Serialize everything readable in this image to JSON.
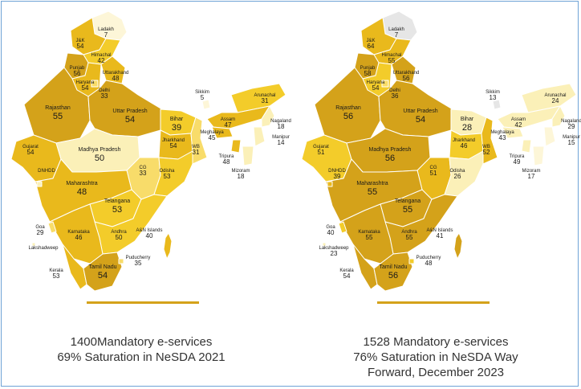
{
  "colors": {
    "high": "#d4a21a",
    "mid": "#e9b91c",
    "mid_light": "#f3cc2a",
    "light": "#f8dc6a",
    "pale": "#fbf0b8",
    "very_pale": "#fdf6d8",
    "grey": "#e6e6e6",
    "border": "#ffffff",
    "rule": "#d4a21a",
    "frame_border": "#6fa3d6"
  },
  "maps": [
    {
      "id": "2021",
      "caption_lines": [
        "1400Mandatory e-services",
        "69% Saturation in NeSDA 2021"
      ],
      "states": {
        "ladakh": {
          "name": "Ladakh",
          "value": "7"
        },
        "jk": {
          "name": "J&K",
          "value": "54"
        },
        "himachal": {
          "name": "Himachal",
          "value": "42"
        },
        "punjab": {
          "name": "Punjab",
          "value": "56"
        },
        "uttarakhand": {
          "name": "Uttarakhand",
          "value": "48"
        },
        "haryana": {
          "name": "Haryana",
          "value": "54"
        },
        "delhi": {
          "name": "Delhi",
          "value": "33"
        },
        "rajasthan": {
          "name": "Rajasthan",
          "value": "55"
        },
        "up": {
          "name": "Uttar Pradesh",
          "value": "54"
        },
        "bihar": {
          "name": "Bihar",
          "value": "39"
        },
        "gujarat": {
          "name": "Gujarat",
          "value": "54"
        },
        "mp": {
          "name": "Madhya Pradesh",
          "value": "50"
        },
        "jharkhand": {
          "name": "Jharkhand",
          "value": "54"
        },
        "wb": {
          "name": "WB",
          "value": "31"
        },
        "cg": {
          "name": "CG",
          "value": "33"
        },
        "odisha": {
          "name": "Odisha",
          "value": "53"
        },
        "maharashtra": {
          "name": "Maharashtra",
          "value": "48"
        },
        "telangana": {
          "name": "Telangana",
          "value": "53"
        },
        "andhra": {
          "name": "Andhra",
          "value": "50"
        },
        "karnataka": {
          "name": "Karnataka",
          "value": "46"
        },
        "goa": {
          "name": "Goa",
          "value": "29"
        },
        "kerala": {
          "name": "Kerala",
          "value": "53"
        },
        "tn": {
          "name": "Tamil Nadu",
          "value": "54"
        },
        "puducherry": {
          "name": "Puducherry",
          "value": "35"
        },
        "sikkim": {
          "name": "Sikkim",
          "value": "5"
        },
        "arunachal": {
          "name": "Arunachal",
          "value": "31"
        },
        "assam": {
          "name": "Assam",
          "value": "47"
        },
        "nagaland": {
          "name": "Nagaland",
          "value": "18"
        },
        "meghalaya": {
          "name": "Meghalaya",
          "value": "45"
        },
        "manipur": {
          "name": "Manipur",
          "value": "14"
        },
        "tripura": {
          "name": "Tripura",
          "value": "48"
        },
        "mizoram": {
          "name": "Mizoram",
          "value": "18"
        },
        "andaman": {
          "name": "A&N Islands",
          "value": "40"
        },
        "lakshadweep": {
          "name": "Lakshadweep",
          "value": ""
        },
        "dnh": {
          "name": "DNHDD",
          "value": ""
        }
      },
      "fills": {
        "ladakh": "very_pale",
        "jk": "mid",
        "himachal": "mid_light",
        "punjab": "high",
        "uttarakhand": "mid",
        "haryana": "mid",
        "delhi": "light",
        "rajasthan": "high",
        "up": "high",
        "bihar": "mid_light",
        "gujarat": "mid",
        "mp": "pale",
        "jharkhand": "mid",
        "wb": "light",
        "cg": "light",
        "odisha": "mid_light",
        "maharashtra": "mid",
        "telangana": "mid_light",
        "andhra": "mid_light",
        "karnataka": "mid",
        "goa": "light",
        "kerala": "mid",
        "tn": "high",
        "puducherry": "light",
        "sikkim": "very_pale",
        "arunachal": "mid_light",
        "assam": "mid",
        "nagaland": "pale",
        "meghalaya": "mid",
        "manipur": "pale",
        "tripura": "mid",
        "mizoram": "pale",
        "andaman": "mid",
        "lakshadweep": "pale",
        "dnh": "pale"
      }
    },
    {
      "id": "2023",
      "caption_lines": [
        "1528 Mandatory e-services",
        "76% Saturation in NeSDA Way",
        "Forward, December 2023"
      ],
      "states": {
        "ladakh": {
          "name": "Ladakh",
          "value": "7"
        },
        "jk": {
          "name": "J&K",
          "value": "64"
        },
        "himachal": {
          "name": "Himachal",
          "value": "55"
        },
        "punjab": {
          "name": "Punjab",
          "value": "58"
        },
        "uttarakhand": {
          "name": "Uttarakhand",
          "value": "56"
        },
        "haryana": {
          "name": "Haryana",
          "value": "54"
        },
        "delhi": {
          "name": "Delhi",
          "value": "36"
        },
        "rajasthan": {
          "name": "Rajasthan",
          "value": "56"
        },
        "up": {
          "name": "Uttar Pradesh",
          "value": "54"
        },
        "bihar": {
          "name": "Bihar",
          "value": "28"
        },
        "gujarat": {
          "name": "Gujarat",
          "value": "51"
        },
        "mp": {
          "name": "Madhya Pradesh",
          "value": "56"
        },
        "jharkhand": {
          "name": "Jharkhand",
          "value": "46"
        },
        "wb": {
          "name": "WB",
          "value": "52"
        },
        "cg": {
          "name": "CG",
          "value": "51"
        },
        "odisha": {
          "name": "Odisha",
          "value": "26"
        },
        "maharashtra": {
          "name": "Maharashtra",
          "value": "55"
        },
        "telangana": {
          "name": "Telangana",
          "value": "55"
        },
        "andhra": {
          "name": "Andhra",
          "value": "55"
        },
        "karnataka": {
          "name": "Karnataka",
          "value": "55"
        },
        "goa": {
          "name": "Goa",
          "value": "40"
        },
        "kerala": {
          "name": "Kerala",
          "value": "54"
        },
        "tn": {
          "name": "Tamil Nadu",
          "value": "56"
        },
        "puducherry": {
          "name": "Puducherry",
          "value": "48"
        },
        "sikkim": {
          "name": "Sikkim",
          "value": "13"
        },
        "arunachal": {
          "name": "Arunachal",
          "value": "24"
        },
        "assam": {
          "name": "Assam",
          "value": "42"
        },
        "nagaland": {
          "name": "Nagaland",
          "value": "29"
        },
        "meghalaya": {
          "name": "Meghalaya",
          "value": "43"
        },
        "manipur": {
          "name": "Manipur",
          "value": "15"
        },
        "tripura": {
          "name": "Tripura",
          "value": "49"
        },
        "mizoram": {
          "name": "Mizoram",
          "value": "17"
        },
        "andaman": {
          "name": "A&N Islands",
          "value": "41"
        },
        "lakshadweep": {
          "name": "Lakshadweep",
          "value": "23"
        },
        "dnh": {
          "name": "DNHDD",
          "value": "39"
        }
      },
      "fills": {
        "ladakh": "grey",
        "jk": "mid",
        "himachal": "mid",
        "punjab": "high",
        "uttarakhand": "high",
        "haryana": "mid_light",
        "delhi": "light",
        "rajasthan": "high",
        "up": "high",
        "bihar": "pale",
        "gujarat": "mid_light",
        "mp": "high",
        "jharkhand": "mid_light",
        "wb": "mid",
        "cg": "mid",
        "odisha": "pale",
        "maharashtra": "high",
        "telangana": "high",
        "andhra": "high",
        "karnataka": "high",
        "goa": "mid_light",
        "kerala": "high",
        "tn": "high",
        "puducherry": "mid_light",
        "sikkim": "grey",
        "arunachal": "pale",
        "assam": "pale",
        "nagaland": "pale",
        "meghalaya": "pale",
        "manipur": "very_pale",
        "tripura": "pale",
        "mizoram": "very_pale",
        "andaman": "high",
        "lakshadweep": "pale",
        "dnh": "mid"
      }
    }
  ]
}
